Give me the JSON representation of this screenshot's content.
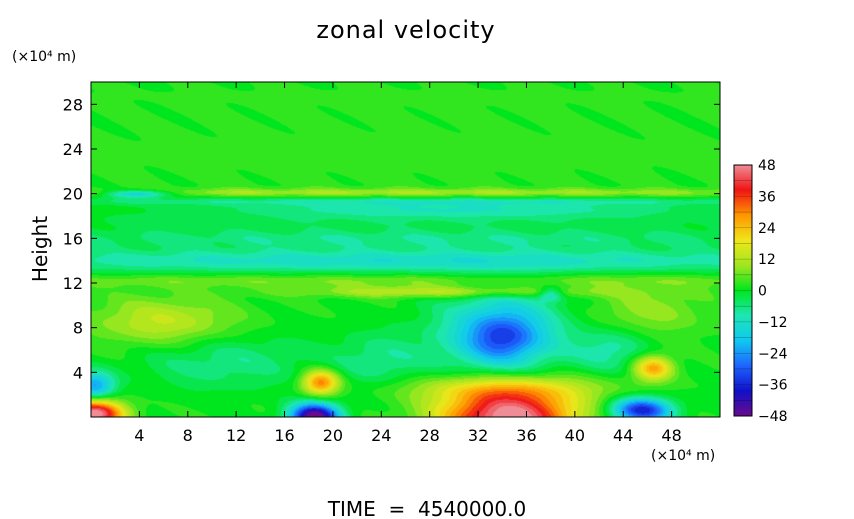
{
  "chart_data": {
    "type": "heatmap",
    "title": "zonal velocity",
    "ylabel": "Height",
    "y_unit": "(×10⁴ m)",
    "x_unit": "(×10⁴ m)",
    "footer": "TIME  =  4540000.0",
    "xlim": [
      0,
      52
    ],
    "ylim": [
      0,
      30
    ],
    "x_ticks": [
      4,
      8,
      12,
      16,
      20,
      24,
      28,
      32,
      36,
      40,
      44,
      48
    ],
    "y_ticks": [
      4,
      8,
      12,
      16,
      20,
      24,
      28
    ],
    "colorbar": {
      "min": -48,
      "max": 48,
      "ticks": [
        48,
        36,
        24,
        12,
        0,
        -12,
        -24,
        -36,
        -48
      ],
      "stops": [
        "#6a0a8c",
        "#1010c8",
        "#1e64ff",
        "#10c8f0",
        "#1ee6b4",
        "#00e61e",
        "#a0e620",
        "#f0e619",
        "#ff9600",
        "#f01414",
        "#f08c96"
      ]
    },
    "field": {
      "background": 1,
      "features": [
        {
          "x": 26,
          "y": 24,
          "rx": 40,
          "ry": 6,
          "v": 2
        },
        {
          "x": 26,
          "y": 20.1,
          "rx": 40,
          "ry": 0.35,
          "v": 9
        },
        {
          "x": 4,
          "y": 20,
          "rx": 3,
          "ry": 0.35,
          "v": -22
        },
        {
          "x": 26,
          "y": 19.3,
          "rx": 40,
          "ry": 0.35,
          "v": -8
        },
        {
          "x": 30,
          "y": 18.6,
          "rx": 20,
          "ry": 0.8,
          "v": -12
        },
        {
          "x": 26,
          "y": 17.5,
          "rx": 40,
          "ry": 0.8,
          "v": -4
        },
        {
          "x": 26,
          "y": 16,
          "rx": 40,
          "ry": 0.9,
          "v": -8
        },
        {
          "x": 26,
          "y": 14,
          "rx": 40,
          "ry": 1.1,
          "v": -14
        },
        {
          "x": 26,
          "y": 12.2,
          "rx": 40,
          "ry": 0.6,
          "v": 7
        },
        {
          "x": 30,
          "y": 11.2,
          "rx": 12,
          "ry": 0.5,
          "v": 14
        },
        {
          "x": 6,
          "y": 8.5,
          "rx": 6,
          "ry": 2.2,
          "v": 13
        },
        {
          "x": 46,
          "y": 9.5,
          "rx": 5,
          "ry": 2.2,
          "v": 8
        },
        {
          "x": 34,
          "y": 7.5,
          "rx": 5,
          "ry": 3.6,
          "v": -24
        },
        {
          "x": 34,
          "y": 7,
          "rx": 2.5,
          "ry": 1.8,
          "v": -12
        },
        {
          "x": 38,
          "y": 11,
          "rx": 1,
          "ry": 0.6,
          "v": -14
        },
        {
          "x": 11,
          "y": 5,
          "rx": 7,
          "ry": 2.5,
          "v": -8
        },
        {
          "x": 24,
          "y": 5,
          "rx": 4,
          "ry": 2.5,
          "v": -8
        },
        {
          "x": 43,
          "y": 6,
          "rx": 3,
          "ry": 2,
          "v": -10
        },
        {
          "x": 19,
          "y": 3.1,
          "rx": 1.5,
          "ry": 1.1,
          "v": 30
        },
        {
          "x": 46.5,
          "y": 4.4,
          "rx": 1.6,
          "ry": 1.1,
          "v": 26
        },
        {
          "x": 0.3,
          "y": 2.8,
          "rx": 1.6,
          "ry": 1.2,
          "v": -24
        },
        {
          "x": 0.3,
          "y": 0.3,
          "rx": 2.4,
          "ry": 1.2,
          "v": 48
        },
        {
          "x": 18.5,
          "y": 0,
          "rx": 2,
          "ry": 1.2,
          "v": -52
        },
        {
          "x": 34.5,
          "y": 0,
          "rx": 5.5,
          "ry": 2.6,
          "v": 50
        },
        {
          "x": 45.5,
          "y": 0.6,
          "rx": 2.5,
          "ry": 1.1,
          "v": -38
        },
        {
          "x": 34,
          "y": 2.6,
          "rx": 9,
          "ry": 1.2,
          "v": 12
        }
      ]
    }
  }
}
